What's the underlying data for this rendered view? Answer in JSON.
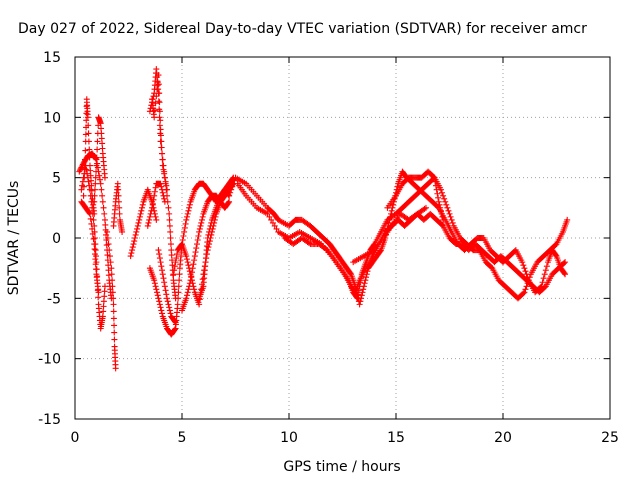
{
  "chart_data": {
    "type": "scatter",
    "title": "Day 027 of 2022, Sidereal Day-to-day VTEC variation (SDTVAR) for receiver amcr",
    "xlabel": "GPS time / hours",
    "ylabel": "SDTVAR / TECUs",
    "xlim": [
      0,
      25
    ],
    "ylim": [
      -15,
      15
    ],
    "xticks": [
      0,
      5,
      10,
      15,
      20,
      25
    ],
    "yticks": [
      -15,
      -10,
      -5,
      0,
      5,
      10,
      15
    ],
    "grid": true,
    "marker": "+",
    "series_color": "#ff0000",
    "tracks": [
      [
        [
          0.2,
          5.5
        ],
        [
          0.4,
          6.2
        ],
        [
          0.6,
          6.8
        ],
        [
          0.8,
          7.0
        ],
        [
          1.0,
          6.5
        ],
        [
          1.2,
          4.5
        ],
        [
          1.4,
          1.5
        ],
        [
          1.5,
          -1.0
        ],
        [
          1.6,
          -3.5
        ],
        [
          1.7,
          -5.0
        ]
      ],
      [
        [
          0.3,
          4.0
        ],
        [
          0.5,
          6.0
        ],
        [
          0.7,
          4.0
        ],
        [
          0.9,
          1.0
        ],
        [
          1.0,
          -2.0
        ],
        [
          1.1,
          -5.5
        ],
        [
          1.2,
          -7.5
        ],
        [
          1.3,
          -6.5
        ],
        [
          1.4,
          -4.0
        ]
      ],
      [
        [
          0.4,
          3.5
        ],
        [
          0.5,
          8.0
        ],
        [
          0.55,
          11.5
        ],
        [
          0.6,
          10.0
        ],
        [
          0.7,
          6.0
        ],
        [
          0.8,
          3.5
        ],
        [
          0.9,
          2.0
        ]
      ],
      [
        [
          0.9,
          3.0
        ],
        [
          1.0,
          6.0
        ],
        [
          1.1,
          10.0
        ],
        [
          1.2,
          9.5
        ],
        [
          1.3,
          7.0
        ],
        [
          1.4,
          5.0
        ]
      ],
      [
        [
          0.3,
          3.0
        ],
        [
          0.5,
          2.5
        ],
        [
          0.7,
          2.0
        ],
        [
          0.9,
          -0.5
        ],
        [
          1.0,
          -3.0
        ],
        [
          1.1,
          -4.5
        ]
      ],
      [
        [
          1.5,
          0.5
        ],
        [
          1.7,
          -2.5
        ],
        [
          1.8,
          -5.5
        ],
        [
          1.85,
          -9.0
        ],
        [
          1.9,
          -10.8
        ]
      ],
      [
        [
          1.8,
          1.0
        ],
        [
          1.9,
          3.0
        ],
        [
          2.0,
          4.5
        ],
        [
          2.1,
          1.5
        ],
        [
          2.2,
          0.5
        ]
      ],
      [
        [
          2.6,
          -1.5
        ],
        [
          2.8,
          0.0
        ],
        [
          3.0,
          1.5
        ],
        [
          3.2,
          3.0
        ],
        [
          3.4,
          4.0
        ],
        [
          3.6,
          3.0
        ],
        [
          3.8,
          1.5
        ]
      ],
      [
        [
          3.4,
          1.0
        ],
        [
          3.6,
          2.5
        ],
        [
          3.8,
          4.5
        ],
        [
          4.0,
          4.5
        ],
        [
          4.2,
          3.0
        ]
      ],
      [
        [
          3.5,
          10.5
        ],
        [
          3.7,
          12.0
        ],
        [
          3.8,
          14.0
        ],
        [
          3.9,
          12.0
        ],
        [
          4.0,
          8.0
        ],
        [
          4.2,
          5.0
        ],
        [
          4.4,
          2.0
        ],
        [
          4.5,
          -1.0
        ],
        [
          4.6,
          -3.5
        ],
        [
          4.7,
          -5.0
        ]
      ],
      [
        [
          3.6,
          11.5
        ],
        [
          3.7,
          10.0
        ],
        [
          3.9,
          13.5
        ],
        [
          4.0,
          9.0
        ],
        [
          4.1,
          6.0
        ],
        [
          4.3,
          4.0
        ]
      ],
      [
        [
          3.5,
          -2.5
        ],
        [
          3.7,
          -3.5
        ],
        [
          3.9,
          -5.0
        ],
        [
          4.1,
          -6.5
        ],
        [
          4.3,
          -7.5
        ],
        [
          4.5,
          -8.0
        ],
        [
          4.7,
          -7.5
        ],
        [
          4.8,
          -5.5
        ],
        [
          4.9,
          -2.5
        ],
        [
          5.0,
          -0.5
        ],
        [
          5.2,
          1.5
        ],
        [
          5.4,
          3.0
        ],
        [
          5.6,
          4.0
        ],
        [
          5.8,
          4.5
        ],
        [
          6.0,
          4.5
        ],
        [
          6.2,
          4.0
        ],
        [
          6.4,
          3.5
        ],
        [
          6.6,
          3.0
        ],
        [
          6.8,
          3.5
        ],
        [
          7.0,
          4.0
        ],
        [
          7.2,
          4.5
        ],
        [
          7.4,
          5.0
        ]
      ],
      [
        [
          3.9,
          -1.0
        ],
        [
          4.1,
          -3.0
        ],
        [
          4.3,
          -5.0
        ],
        [
          4.5,
          -6.5
        ],
        [
          4.7,
          -7.0
        ]
      ],
      [
        [
          4.6,
          -3.0
        ],
        [
          4.8,
          -1.0
        ],
        [
          5.0,
          -0.5
        ],
        [
          5.2,
          -1.5
        ],
        [
          5.4,
          -3.0
        ],
        [
          5.6,
          -4.5
        ],
        [
          5.8,
          -5.5
        ],
        [
          6.0,
          -3.0
        ],
        [
          6.2,
          -1.0
        ],
        [
          6.4,
          0.5
        ],
        [
          6.6,
          2.0
        ],
        [
          6.8,
          3.0
        ],
        [
          7.0,
          3.5
        ],
        [
          7.2,
          4.0
        ],
        [
          7.4,
          4.5
        ]
      ],
      [
        [
          5.0,
          -6.0
        ],
        [
          5.2,
          -5.0
        ],
        [
          5.4,
          -3.5
        ],
        [
          5.6,
          -1.5
        ],
        [
          5.8,
          0.5
        ],
        [
          6.0,
          2.0
        ],
        [
          6.2,
          3.0
        ],
        [
          6.4,
          3.5
        ],
        [
          6.6,
          3.5
        ],
        [
          6.8,
          3.0
        ],
        [
          7.0,
          2.5
        ],
        [
          7.2,
          3.0
        ]
      ],
      [
        [
          5.8,
          -5.0
        ],
        [
          6.0,
          -4.0
        ],
        [
          6.1,
          -2.0
        ],
        [
          6.2,
          0.0
        ],
        [
          6.4,
          1.5
        ],
        [
          6.6,
          2.5
        ],
        [
          6.8,
          3.5
        ],
        [
          7.0,
          4.0
        ],
        [
          7.2,
          3.5
        ]
      ],
      [
        [
          7.2,
          3.5
        ],
        [
          7.5,
          5.0
        ],
        [
          8.0,
          4.5
        ],
        [
          8.5,
          3.5
        ],
        [
          9.0,
          2.5
        ],
        [
          9.3,
          2.0
        ],
        [
          9.5,
          1.5
        ],
        [
          10.0,
          1.0
        ],
        [
          10.3,
          1.5
        ],
        [
          10.6,
          1.5
        ],
        [
          11.0,
          1.0
        ],
        [
          11.3,
          0.5
        ],
        [
          11.6,
          0.0
        ],
        [
          11.9,
          -0.5
        ],
        [
          12.1,
          -1.0
        ],
        [
          12.3,
          -1.5
        ],
        [
          12.5,
          -2.0
        ],
        [
          12.7,
          -2.5
        ],
        [
          12.9,
          -3.0
        ],
        [
          13.1,
          -4.0
        ],
        [
          13.3,
          -5.5
        ],
        [
          13.5,
          -4.0
        ],
        [
          13.7,
          -2.5
        ],
        [
          13.9,
          -2.0
        ],
        [
          14.1,
          -1.5
        ],
        [
          14.3,
          -1.0
        ],
        [
          14.5,
          0.0
        ],
        [
          14.7,
          1.5
        ],
        [
          14.9,
          3.0
        ],
        [
          15.1,
          4.5
        ],
        [
          15.3,
          5.5
        ],
        [
          15.5,
          5.0
        ],
        [
          15.8,
          4.5
        ],
        [
          16.1,
          4.0
        ],
        [
          16.4,
          3.5
        ],
        [
          16.7,
          3.0
        ],
        [
          17.0,
          2.5
        ],
        [
          17.3,
          1.5
        ],
        [
          17.6,
          0.5
        ],
        [
          17.9,
          -0.5
        ],
        [
          18.2,
          -1.0
        ],
        [
          18.5,
          -0.5
        ],
        [
          18.8,
          0.0
        ],
        [
          19.1,
          0.0
        ],
        [
          19.4,
          -1.0
        ],
        [
          19.7,
          -1.5
        ],
        [
          20.0,
          -2.0
        ],
        [
          20.3,
          -1.5
        ],
        [
          20.6,
          -1.0
        ],
        [
          20.9,
          -2.0
        ],
        [
          21.2,
          -3.5
        ],
        [
          21.5,
          -4.5
        ],
        [
          21.8,
          -4.0
        ],
        [
          22.1,
          -2.0
        ],
        [
          22.3,
          -1.0
        ],
        [
          22.5,
          -1.5
        ],
        [
          22.7,
          -2.5
        ],
        [
          22.9,
          -3.0
        ]
      ],
      [
        [
          7.6,
          4.5
        ],
        [
          8.0,
          3.5
        ],
        [
          8.5,
          2.5
        ],
        [
          9.0,
          2.0
        ],
        [
          9.5,
          0.5
        ],
        [
          10.0,
          0.0
        ],
        [
          10.5,
          0.5
        ],
        [
          11.0,
          0.0
        ],
        [
          11.5,
          -0.5
        ],
        [
          12.0,
          -1.5
        ],
        [
          12.4,
          -2.5
        ],
        [
          12.8,
          -3.5
        ],
        [
          13.0,
          -4.5
        ],
        [
          13.2,
          -5.0
        ],
        [
          13.4,
          -3.0
        ],
        [
          13.6,
          -2.0
        ],
        [
          13.8,
          -1.0
        ],
        [
          14.0,
          -0.5
        ],
        [
          14.3,
          0.5
        ],
        [
          14.6,
          1.5
        ],
        [
          15.0,
          2.0
        ],
        [
          15.3,
          2.5
        ],
        [
          15.6,
          3.0
        ],
        [
          15.9,
          3.5
        ],
        [
          16.2,
          4.0
        ],
        [
          16.5,
          4.5
        ],
        [
          16.8,
          5.0
        ],
        [
          17.1,
          4.0
        ],
        [
          17.4,
          2.5
        ],
        [
          17.7,
          1.0
        ],
        [
          18.0,
          0.0
        ],
        [
          18.3,
          -0.5
        ],
        [
          18.6,
          -1.0
        ],
        [
          18.9,
          -1.0
        ],
        [
          19.2,
          -2.0
        ],
        [
          19.5,
          -2.5
        ],
        [
          19.8,
          -3.5
        ],
        [
          20.1,
          -4.0
        ],
        [
          20.4,
          -4.5
        ],
        [
          20.7,
          -5.0
        ],
        [
          21.0,
          -4.5
        ],
        [
          21.3,
          -3.0
        ],
        [
          21.6,
          -2.0
        ],
        [
          21.9,
          -1.5
        ],
        [
          22.2,
          -1.0
        ],
        [
          22.5,
          -0.5
        ],
        [
          22.8,
          0.5
        ],
        [
          23.0,
          1.5
        ]
      ],
      [
        [
          9.8,
          0.0
        ],
        [
          10.2,
          -0.5
        ],
        [
          10.6,
          0.0
        ],
        [
          11.0,
          -0.5
        ],
        [
          11.4,
          -0.5
        ],
        [
          11.8,
          -1.0
        ],
        [
          12.2,
          -2.0
        ],
        [
          12.6,
          -3.0
        ],
        [
          12.9,
          -4.0
        ],
        [
          13.1,
          -4.5
        ],
        [
          13.3,
          -3.5
        ],
        [
          13.6,
          -2.5
        ],
        [
          13.9,
          -1.5
        ],
        [
          14.2,
          -0.5
        ],
        [
          14.5,
          0.5
        ],
        [
          14.8,
          1.0
        ],
        [
          15.1,
          1.5
        ],
        [
          15.4,
          1.0
        ],
        [
          15.7,
          1.5
        ],
        [
          16.0,
          2.0
        ],
        [
          16.3,
          1.5
        ],
        [
          16.6,
          2.0
        ],
        [
          16.9,
          1.5
        ],
        [
          17.2,
          1.0
        ],
        [
          17.5,
          0.0
        ],
        [
          17.8,
          -0.5
        ],
        [
          18.1,
          -0.5
        ],
        [
          18.4,
          -1.0
        ],
        [
          18.7,
          -0.5
        ],
        [
          19.0,
          -1.0
        ],
        [
          19.3,
          -1.5
        ],
        [
          19.6,
          -2.0
        ],
        [
          19.9,
          -1.5
        ],
        [
          20.2,
          -2.0
        ],
        [
          20.5,
          -2.5
        ],
        [
          20.8,
          -3.0
        ],
        [
          21.1,
          -3.5
        ],
        [
          21.4,
          -4.0
        ],
        [
          21.7,
          -4.5
        ],
        [
          22.0,
          -4.0
        ],
        [
          22.3,
          -3.0
        ],
        [
          22.6,
          -2.5
        ],
        [
          22.9,
          -2.0
        ]
      ],
      [
        [
          14.6,
          2.5
        ],
        [
          15.0,
          3.5
        ],
        [
          15.3,
          4.5
        ],
        [
          15.6,
          5.0
        ],
        [
          15.9,
          5.0
        ],
        [
          16.2,
          5.0
        ],
        [
          16.5,
          5.5
        ],
        [
          16.8,
          5.0
        ],
        [
          17.0,
          3.0
        ],
        [
          17.2,
          1.5
        ]
      ],
      [
        [
          13.0,
          -2.0
        ],
        [
          13.5,
          -1.5
        ],
        [
          14.0,
          -1.0
        ],
        [
          14.4,
          0.0
        ],
        [
          14.8,
          1.0
        ],
        [
          15.2,
          2.0
        ],
        [
          15.6,
          1.5
        ],
        [
          16.0,
          2.0
        ],
        [
          16.4,
          2.5
        ]
      ]
    ]
  }
}
